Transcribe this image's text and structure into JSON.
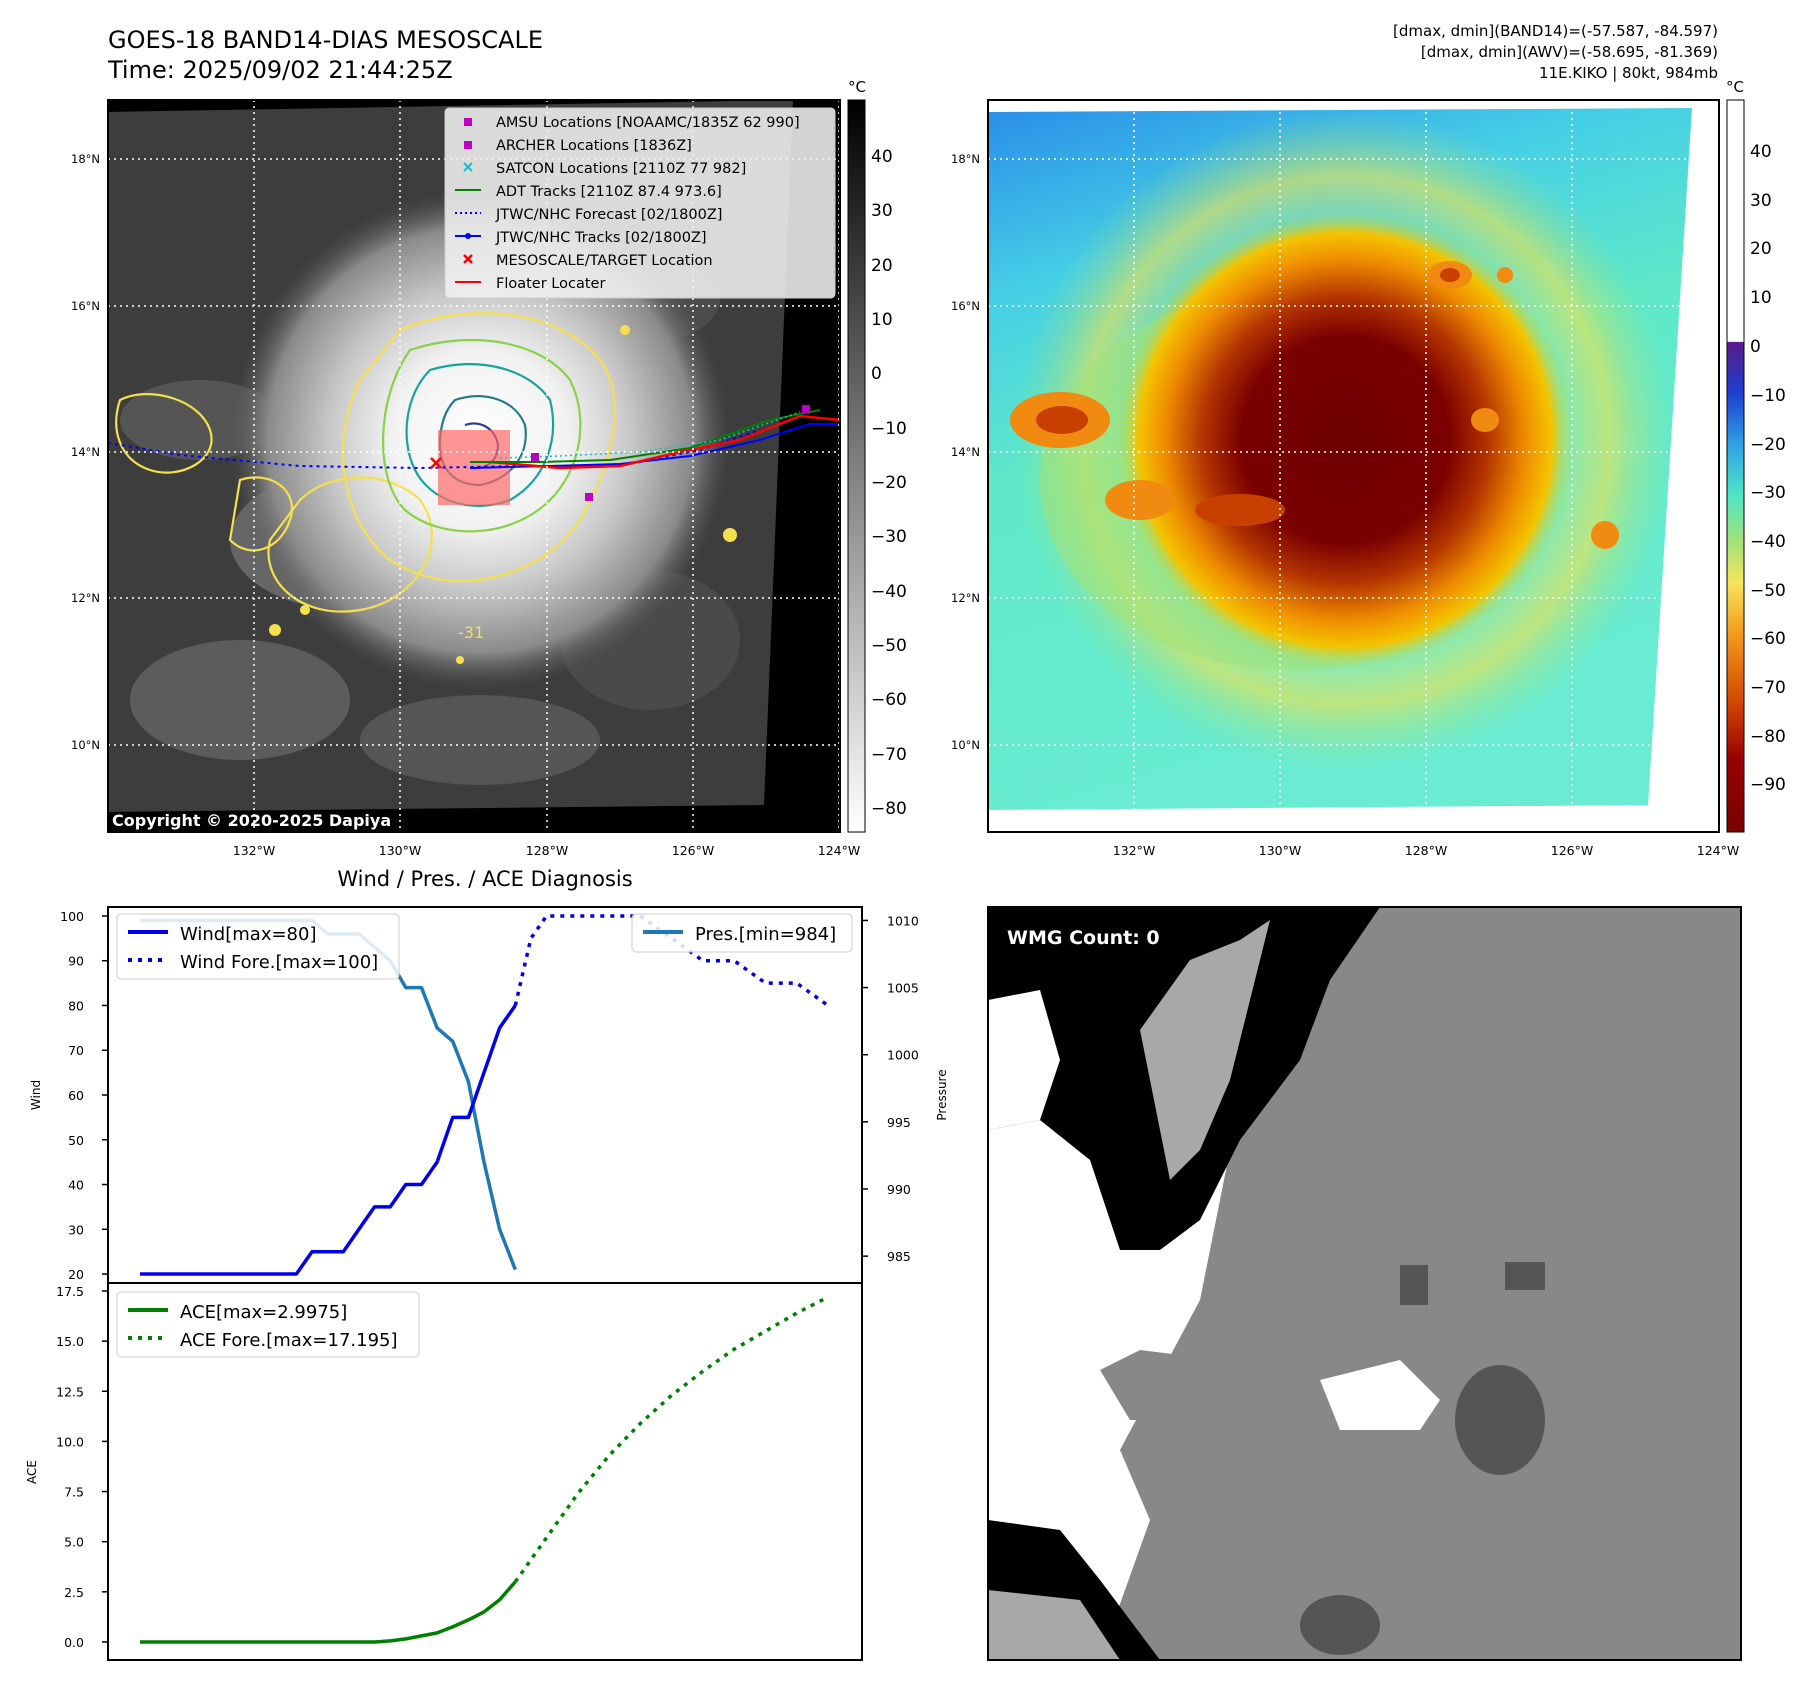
{
  "header": {
    "title_line1": "GOES-18 BAND14-DIAS MESOSCALE",
    "title_line2": "Time: 2025/09/02 21:44:25Z",
    "meta_line1": "[dmax, dmin](BAND14)=(-57.587, -84.597)",
    "meta_line2": "[dmax, dmin](AWV)=(-58.695, -81.369)",
    "meta_line3": "11E.KIKO | 80kt, 984mb"
  },
  "ir_map": {
    "lat_labels": [
      "18°N",
      "16°N",
      "14°N",
      "12°N",
      "10°N"
    ],
    "lon_labels": [
      "132°W",
      "130°W",
      "128°W",
      "126°W",
      "124°W"
    ],
    "contour_label": "-31",
    "copyright": "Copyright © 2020-2025 Dapiya",
    "colorbar_unit": "°C",
    "colorbar_ticks": [
      "40",
      "30",
      "20",
      "10",
      "0",
      "−10",
      "−20",
      "−30",
      "−40",
      "−50",
      "−60",
      "−70",
      "−80"
    ],
    "legend": [
      {
        "label": "AMSU Locations [NOAAMC/1835Z 62 990]",
        "color": "#c000c0",
        "marker": "square"
      },
      {
        "label": "ARCHER Locations [1836Z]",
        "color": "#c000c0",
        "marker": "square"
      },
      {
        "label": "SATCON Locations [2110Z 77 982]",
        "color": "#17becf",
        "marker": "x"
      },
      {
        "label": "ADT Tracks [2110Z 87.4 973.6]",
        "color": "#008000",
        "marker": "line"
      },
      {
        "label": "JTWC/NHC Forecast [02/1800Z]",
        "color": "#0000ff",
        "marker": "dotted"
      },
      {
        "label": "JTWC/NHC Tracks [02/1800Z]",
        "color": "#0000ff",
        "marker": "line-dot"
      },
      {
        "label": "MESOSCALE/TARGET Location",
        "color": "#ff0000",
        "marker": "x"
      },
      {
        "label": "Floater Locater",
        "color": "#ff0000",
        "marker": "line"
      }
    ]
  },
  "awv_map": {
    "lat_labels": [
      "18°N",
      "16°N",
      "14°N",
      "12°N",
      "10°N"
    ],
    "lon_labels": [
      "132°W",
      "130°W",
      "128°W",
      "126°W",
      "124°W"
    ],
    "colorbar_unit": "°C",
    "colorbar_ticks": [
      "40",
      "30",
      "20",
      "10",
      "0",
      "−10",
      "−20",
      "−30",
      "−40",
      "−50",
      "−60",
      "−70",
      "−80",
      "−90"
    ]
  },
  "chart_data": [
    {
      "type": "line",
      "title": "Wind / Pres. / ACE Diagnosis",
      "ylabel": "Wind",
      "y2label": "Pressure",
      "ylim": [
        18,
        102
      ],
      "y2lim": [
        983,
        1011
      ],
      "yticks": [
        "100",
        "90",
        "80",
        "70",
        "60",
        "50",
        "40",
        "30",
        "20"
      ],
      "y2ticks": [
        "1010",
        "1005",
        "1000",
        "995",
        "990",
        "985"
      ],
      "legend_left": [
        "Wind[max=80]",
        "Wind Fore.[max=100]"
      ],
      "legend_right": [
        "Pres.[min=984]"
      ],
      "series": [
        {
          "name": "Wind[max=80]",
          "color": "#0000ee",
          "style": "solid",
          "axis": "left",
          "x": [
            0,
            1,
            2,
            3,
            4,
            5,
            6,
            7,
            8,
            9,
            10,
            11,
            12,
            13,
            14,
            15,
            16,
            17,
            18,
            19,
            20,
            21,
            22,
            23,
            24
          ],
          "values": [
            20,
            20,
            20,
            20,
            20,
            20,
            20,
            20,
            20,
            20,
            20,
            25,
            25,
            25,
            30,
            35,
            35,
            40,
            40,
            45,
            55,
            55,
            65,
            75,
            80
          ]
        },
        {
          "name": "Wind Fore.[max=100]",
          "color": "#0000ee",
          "style": "dotted",
          "axis": "left",
          "x": [
            24,
            25,
            26,
            28,
            30,
            32,
            34,
            36,
            38,
            40,
            42,
            44
          ],
          "values": [
            80,
            95,
            100,
            100,
            100,
            100,
            95,
            90,
            90,
            85,
            85,
            80
          ]
        },
        {
          "name": "Pres.[min=984]",
          "color": "#1f77b4",
          "style": "solid",
          "axis": "right",
          "x": [
            0,
            1,
            2,
            3,
            4,
            5,
            6,
            7,
            8,
            9,
            10,
            11,
            12,
            13,
            14,
            15,
            16,
            17,
            18,
            19,
            20,
            21,
            22,
            23,
            24
          ],
          "values": [
            1010,
            1010,
            1010,
            1010,
            1010,
            1010,
            1010,
            1010,
            1010,
            1010,
            1010,
            1010,
            1009,
            1009,
            1009,
            1008,
            1007,
            1005,
            1005,
            1002,
            1001,
            998,
            992,
            987,
            984
          ]
        }
      ]
    },
    {
      "type": "line",
      "ylabel": "ACE",
      "ylim": [
        -0.9,
        17.9
      ],
      "yticks": [
        "17.5",
        "15.0",
        "12.5",
        "10.0",
        "7.5",
        "5.0",
        "2.5",
        "0.0"
      ],
      "legend": [
        "ACE[max=2.9975]",
        "ACE Fore.[max=17.195]"
      ],
      "series": [
        {
          "name": "ACE[max=2.9975]",
          "color": "#008000",
          "style": "solid",
          "x": [
            0,
            2,
            4,
            6,
            8,
            10,
            12,
            14,
            15,
            16,
            17,
            18,
            19,
            20,
            21,
            22,
            23,
            24
          ],
          "values": [
            0,
            0,
            0,
            0,
            0,
            0,
            0,
            0,
            0,
            0.05,
            0.15,
            0.3,
            0.45,
            0.75,
            1.1,
            1.5,
            2.1,
            2.9975
          ]
        },
        {
          "name": "ACE Fore.[max=17.195]",
          "color": "#008000",
          "style": "dotted",
          "x": [
            24,
            26,
            28,
            30,
            32,
            34,
            36,
            38,
            40,
            42,
            44
          ],
          "values": [
            2.9975,
            5.2,
            7.4,
            9.3,
            10.9,
            12.3,
            13.5,
            14.6,
            15.5,
            16.4,
            17.195
          ]
        }
      ]
    }
  ],
  "wmg": {
    "label": "WMG Count: 0"
  }
}
